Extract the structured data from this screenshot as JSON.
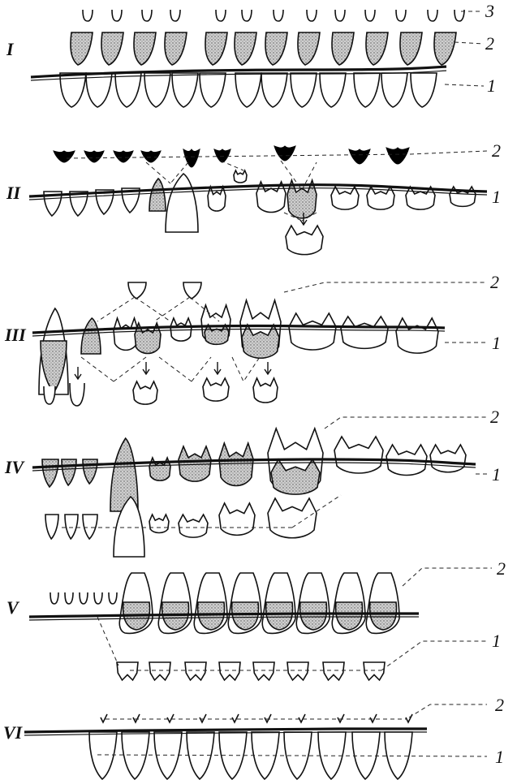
{
  "rows": [
    {
      "numeral": "I",
      "labels": [
        "3",
        "2",
        "1"
      ]
    },
    {
      "numeral": "II",
      "labels": [
        "2",
        "1"
      ]
    },
    {
      "numeral": "III",
      "labels": [
        "2",
        "1"
      ]
    },
    {
      "numeral": "IV",
      "labels": [
        "2",
        "1"
      ]
    },
    {
      "numeral": "V",
      "labels": [
        "2",
        "1"
      ]
    },
    {
      "numeral": "VI",
      "labels": [
        "2",
        "1"
      ]
    }
  ]
}
